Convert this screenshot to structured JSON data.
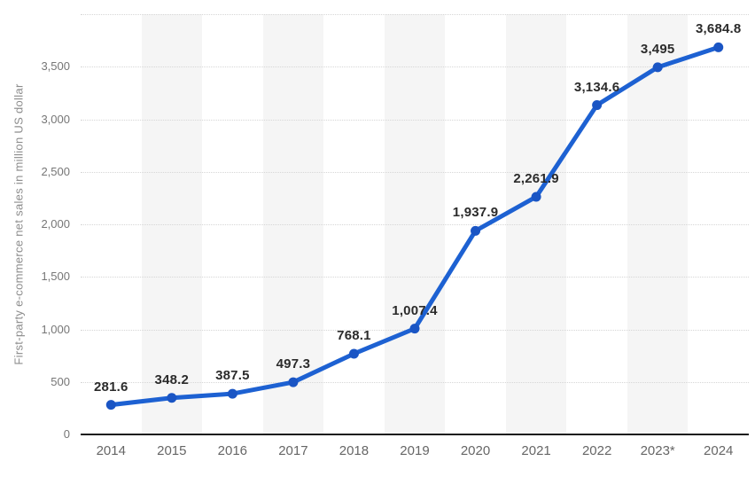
{
  "chart_data": {
    "type": "line",
    "title": "",
    "xlabel": "",
    "ylabel": "First-party e-commerce net sales in million US dollar",
    "categories": [
      "2014",
      "2015",
      "2016",
      "2017",
      "2018",
      "2019",
      "2020",
      "2021",
      "2022",
      "2023*",
      "2024"
    ],
    "values": [
      281.6,
      348.2,
      387.5,
      497.3,
      768.1,
      1007.4,
      1937.9,
      2261.9,
      3134.6,
      3495,
      3684.8
    ],
    "value_labels": [
      "281.6",
      "348.2",
      "387.5",
      "497.3",
      "768.1",
      "1,007.4",
      "1,937.9",
      "2,261.9",
      "3,134.6",
      "3,495",
      "3,684.8"
    ],
    "ylim": [
      0,
      4000
    ],
    "yticks": [
      {
        "value": 0,
        "label": "0"
      },
      {
        "value": 500,
        "label": "500"
      },
      {
        "value": 1000,
        "label": "1,000"
      },
      {
        "value": 1500,
        "label": "1,500"
      },
      {
        "value": 2000,
        "label": "2,000"
      },
      {
        "value": 2500,
        "label": "2,500"
      },
      {
        "value": 3000,
        "label": "3,000"
      },
      {
        "value": 3500,
        "label": "3,500"
      }
    ],
    "gridline_values": [
      500,
      1000,
      1500,
      2000,
      2500,
      3000,
      3500,
      4000
    ],
    "grid": "horizontal-dotted",
    "legend": "none",
    "colors": {
      "line": "#1d61d2",
      "marker": "#1a55c4",
      "column_band": "#f5f5f5",
      "gridline": "#d6d6d6",
      "axis_line": "#1a1a1a",
      "tick_text": "#767676",
      "x_tick_text": "#666666",
      "data_label_text": "#2b2b2b",
      "y_axis_title_text": "#8c8c8c",
      "background": "#ffffff"
    }
  }
}
